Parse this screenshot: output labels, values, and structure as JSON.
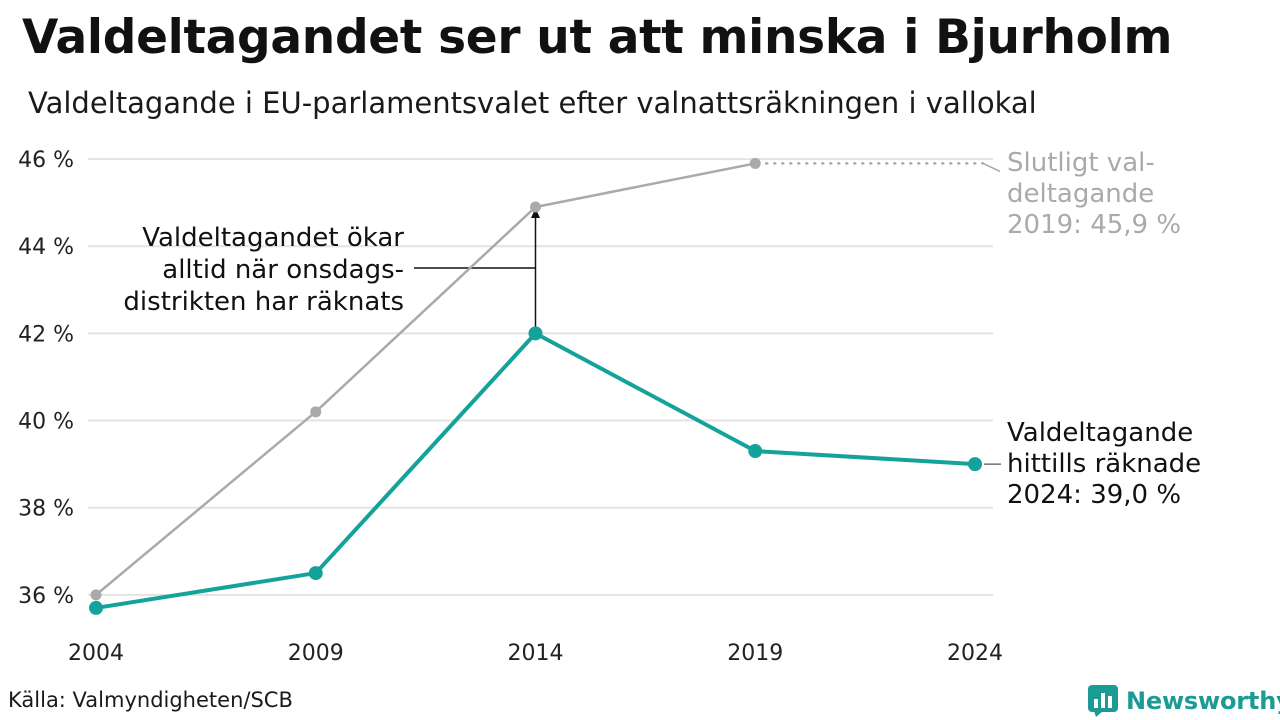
{
  "chart_data": {
    "type": "line",
    "title": "Valdeltagandet ser ut att minska i Bjurholm",
    "subtitle": "Valdeltagande i EU-parlamentsvalet efter valnattsräkningen i vallokal",
    "x": [
      2004,
      2009,
      2014,
      2019,
      2024
    ],
    "x_tick_labels": [
      "2004",
      "2009",
      "2014",
      "2019",
      "2024"
    ],
    "y_tick_values": [
      36,
      38,
      40,
      42,
      44,
      46
    ],
    "y_tick_labels": [
      "36 %",
      "38 %",
      "40 %",
      "42 %",
      "44 %",
      "46 %"
    ],
    "ylim": [
      35.4,
      46.3
    ],
    "grid": true,
    "series": [
      {
        "key": "final",
        "color": "#aaaaaa",
        "values": [
          36.0,
          40.2,
          44.9,
          45.9,
          null
        ]
      },
      {
        "key": "election_night",
        "color": "#14a39a",
        "values": [
          35.7,
          36.5,
          42.0,
          39.3,
          39.0
        ]
      }
    ],
    "annotations": [
      {
        "key": "increase",
        "lines": [
          "Valdeltagandet ökar",
          "alltid när onsdags-",
          "distrikten har räknats"
        ],
        "x": 2014,
        "from": 42.0,
        "to": 44.9
      },
      {
        "key": "final_2019",
        "lines": [
          "Slutligt val-",
          "deltagande",
          "2019: 45,9 %"
        ],
        "x": 2019,
        "y": 45.9,
        "color": "#aaaaaa"
      },
      {
        "key": "current_2024",
        "lines": [
          "Valdeltagande",
          "hittills räknade",
          "2024: 39,0 %"
        ],
        "x": 2024,
        "y": 39.0
      }
    ]
  },
  "source": "Källa: Valmyndigheten/SCB",
  "brand": {
    "name": "Newsworthy",
    "icon": "bar-chart-logo-icon",
    "color": "#1c9b95"
  }
}
